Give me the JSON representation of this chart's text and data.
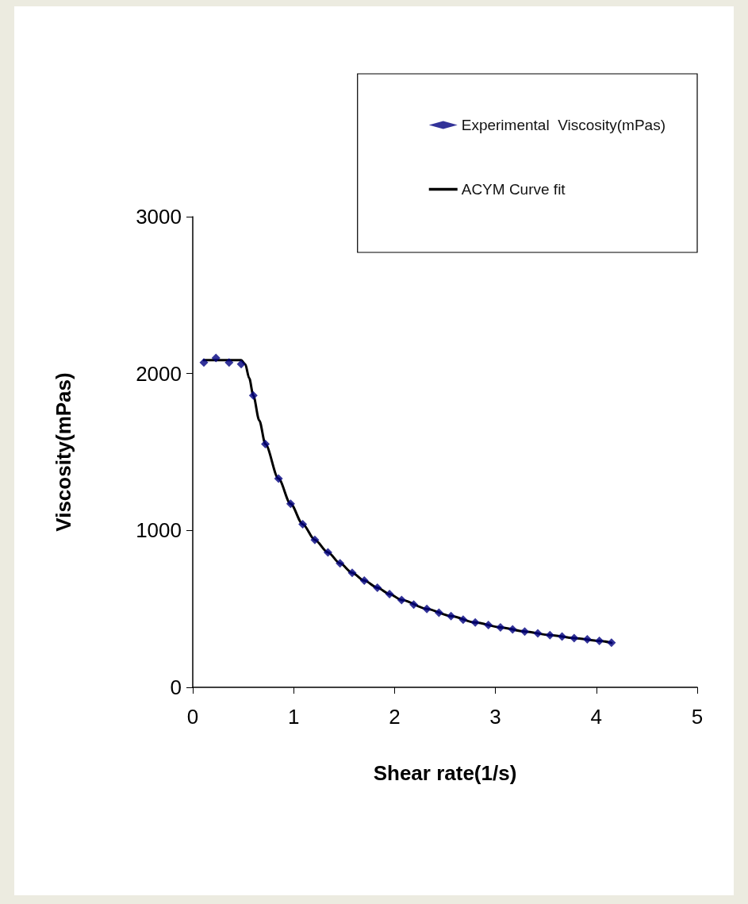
{
  "chart_data": {
    "type": "scatter",
    "xlabel": "Shear rate(1/s)",
    "ylabel": "Viscosity(mPas)",
    "xlim": [
      0,
      5
    ],
    "xticks": [
      0,
      1,
      2,
      3,
      4,
      5
    ],
    "ylim": [
      0,
      3000
    ],
    "yticks": [
      0,
      1000,
      2000,
      3000
    ],
    "grid": false,
    "legend": "top right",
    "marker": "diamond",
    "series": [
      {
        "name": "Experimental  Viscosity(mPas)",
        "color": "#000080",
        "x": [
          0.11,
          0.23,
          0.36,
          0.48,
          0.6,
          0.72,
          0.85,
          0.97,
          1.09,
          1.21,
          1.34,
          1.46,
          1.58,
          1.7,
          1.83,
          1.95,
          2.07,
          2.19,
          2.32,
          2.44,
          2.56,
          2.68,
          2.8,
          2.93,
          3.05,
          3.17,
          3.29,
          3.42,
          3.54,
          3.66,
          3.78,
          3.91,
          4.03,
          4.15
        ],
        "values": [
          2070,
          2100,
          2070,
          2060,
          1860,
          1550,
          1330,
          1170,
          1040,
          940,
          860,
          790,
          730,
          680,
          635,
          595,
          557,
          528,
          500,
          475,
          454,
          431,
          413,
          397,
          382,
          369,
          356,
          344,
          333,
          324,
          314,
          306,
          296,
          284
        ]
      },
      {
        "name": "ACYM Curve fit",
        "type": "line",
        "color": "#000000",
        "marker": "none",
        "line_style": "solid",
        "x": [
          0.11,
          0.3,
          0.48,
          0.52,
          0.56,
          0.6,
          0.66,
          0.72,
          0.85,
          0.97,
          1.09,
          1.21,
          1.34,
          1.46,
          1.58,
          1.7,
          1.83,
          1.95,
          2.07,
          2.32,
          2.56,
          2.8,
          3.05,
          3.29,
          3.54,
          3.78,
          4.03,
          4.15
        ],
        "values": [
          2085,
          2085,
          2085,
          2060,
          1970,
          1860,
          1700,
          1550,
          1330,
          1170,
          1040,
          940,
          860,
          790,
          730,
          680,
          635,
          595,
          557,
          500,
          454,
          413,
          382,
          356,
          333,
          314,
          296,
          284
        ]
      }
    ]
  }
}
